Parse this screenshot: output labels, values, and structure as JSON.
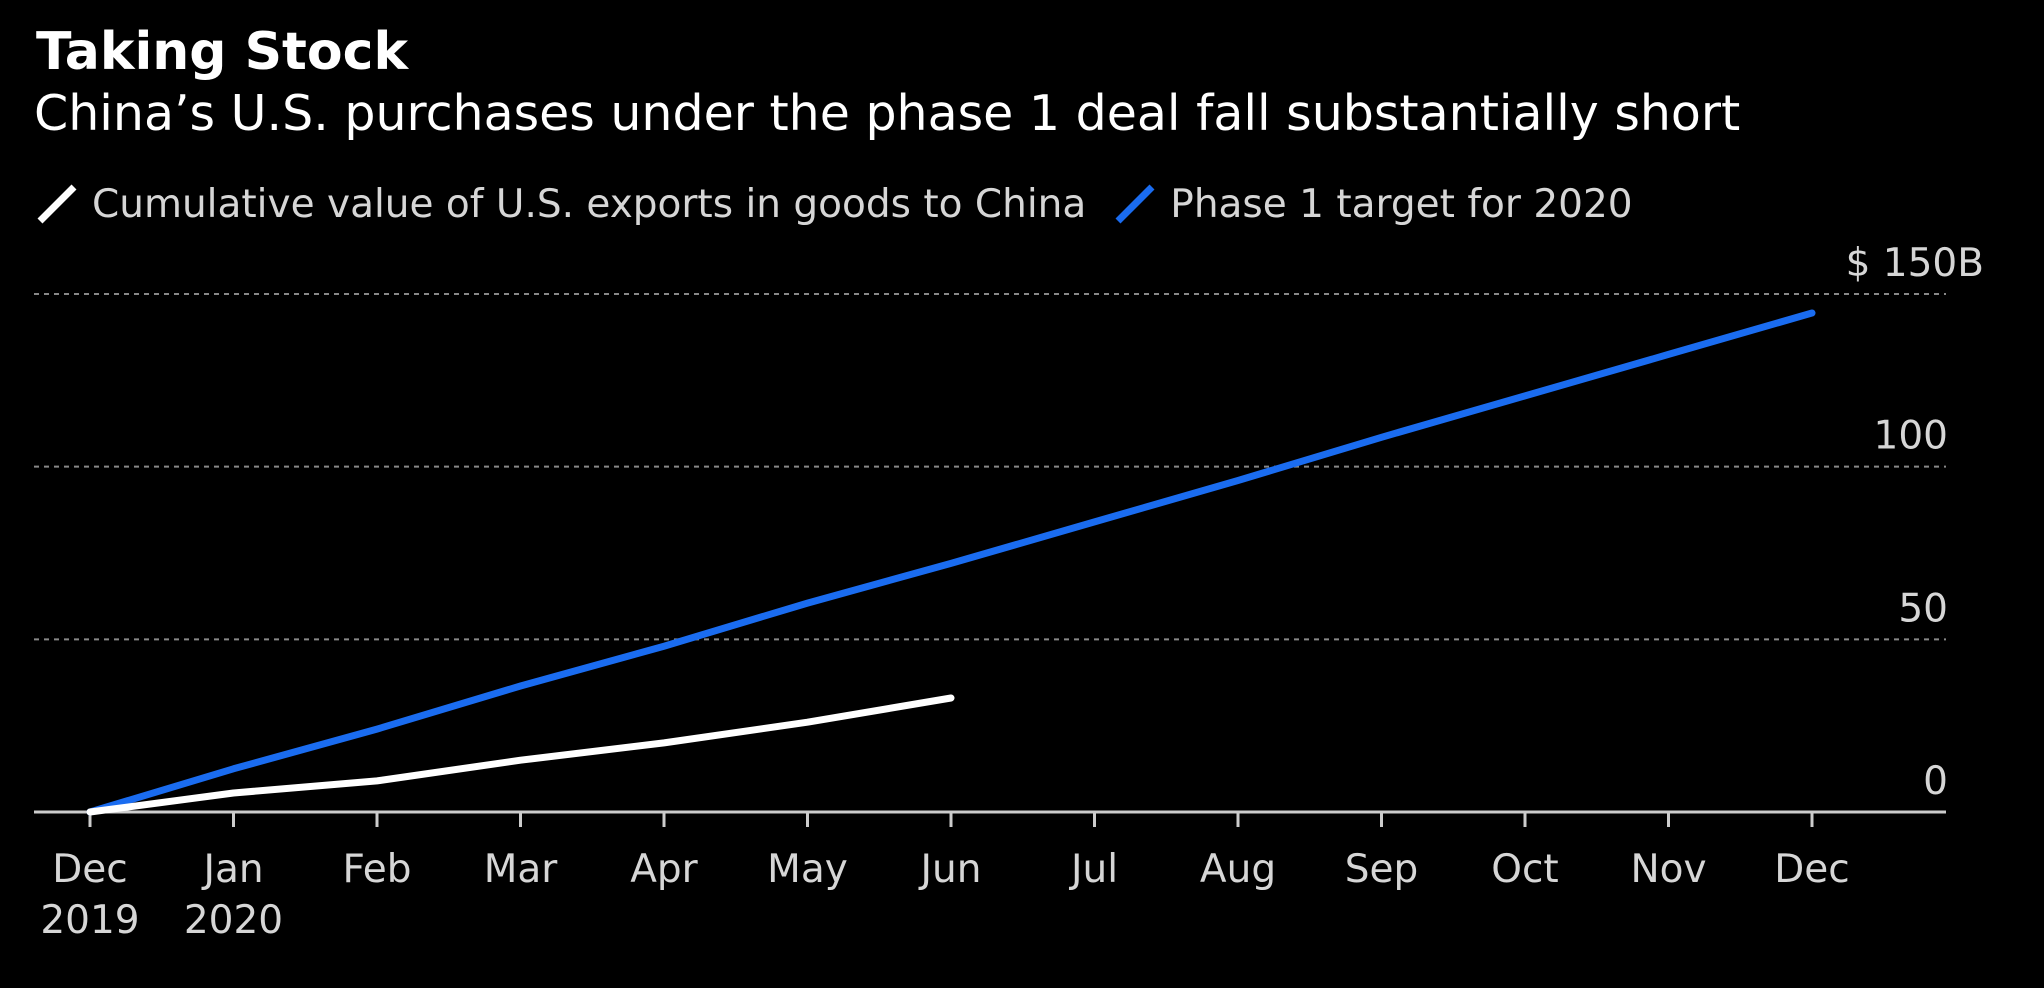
{
  "chart_data": {
    "type": "line",
    "title": "Taking Stock",
    "subtitle": "China’s U.S. purchases under the phase 1 deal fall substantially short",
    "x": [
      "Dec 2019",
      "Jan 2020",
      "Feb",
      "Mar",
      "Apr",
      "May",
      "Jun",
      "Jul",
      "Aug",
      "Sep",
      "Oct",
      "Nov",
      "Dec"
    ],
    "x_tick_labels": [
      {
        "line1": "Dec",
        "line2": "2019"
      },
      {
        "line1": "Jan",
        "line2": "2020"
      },
      {
        "line1": "Feb",
        "line2": ""
      },
      {
        "line1": "Mar",
        "line2": ""
      },
      {
        "line1": "Apr",
        "line2": ""
      },
      {
        "line1": "May",
        "line2": ""
      },
      {
        "line1": "Jun",
        "line2": ""
      },
      {
        "line1": "Jul",
        "line2": ""
      },
      {
        "line1": "Aug",
        "line2": ""
      },
      {
        "line1": "Sep",
        "line2": ""
      },
      {
        "line1": "Oct",
        "line2": ""
      },
      {
        "line1": "Nov",
        "line2": ""
      },
      {
        "line1": "Dec",
        "line2": ""
      }
    ],
    "y_ticks": [
      {
        "value": 0,
        "label": "0"
      },
      {
        "value": 50,
        "label": "50"
      },
      {
        "value": 100,
        "label": "100"
      },
      {
        "value": 150,
        "label": "$ 150B"
      }
    ],
    "ylim": [
      0,
      150
    ],
    "grid": true,
    "legend_position": "top-left",
    "series": [
      {
        "name": "Cumulative value of U.S. exports in goods to China",
        "color": "#ffffff",
        "values": [
          0,
          5.5,
          9,
          15,
          20,
          26,
          33,
          null,
          null,
          null,
          null,
          null,
          null
        ]
      },
      {
        "name": "Phase 1 target for 2020",
        "color": "#1a6cf0",
        "values": [
          0,
          12.5,
          24,
          36.5,
          48,
          60.5,
          72,
          84,
          96,
          108.5,
          120.5,
          132.5,
          144.5
        ]
      }
    ]
  },
  "colors": {
    "background": "#000000",
    "text": "#ffffff",
    "tick_text": "#d6d6d6",
    "grid": "#888888",
    "axis": "#cccccc"
  }
}
